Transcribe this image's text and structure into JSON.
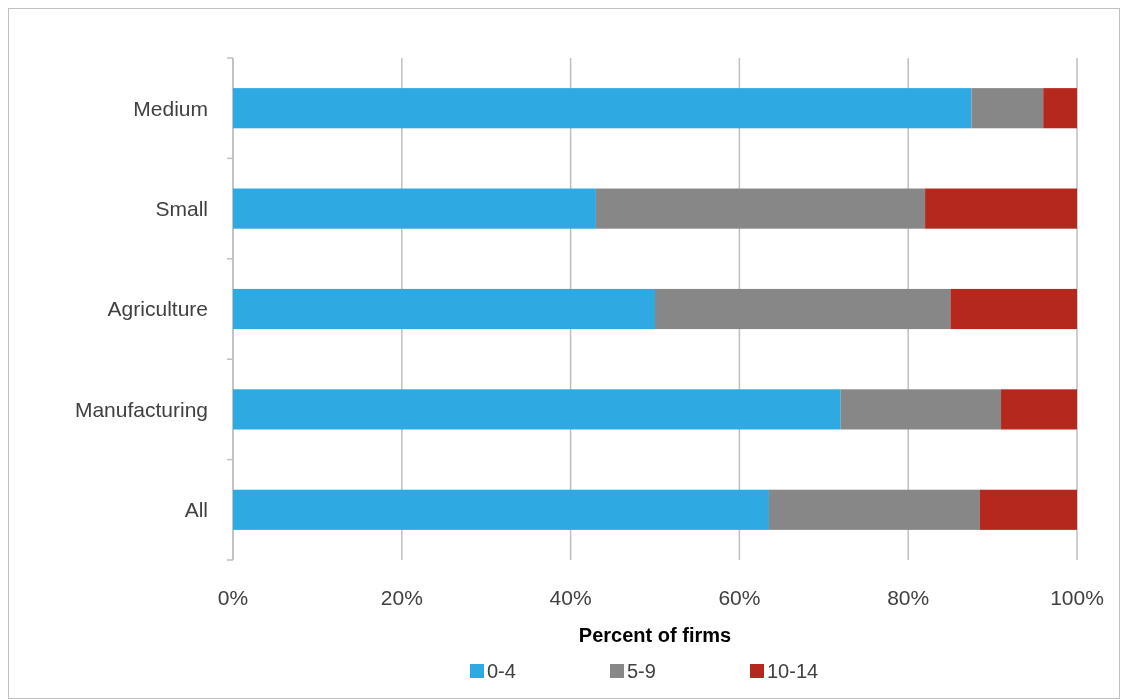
{
  "chart_data": {
    "type": "bar",
    "orientation": "horizontal",
    "stacked": true,
    "xlabel": "Percent of firms",
    "categories": [
      "Medium",
      "Small",
      "Agriculture",
      "Manufacturing",
      "All"
    ],
    "series": [
      {
        "name": "0-4",
        "color": "#2ea9e1",
        "values": [
          87.5,
          43,
          50,
          72,
          63.5
        ]
      },
      {
        "name": "5-9",
        "color": "#878787",
        "values": [
          8.5,
          39,
          35,
          19,
          25
        ]
      },
      {
        "name": "10-14",
        "color": "#b5281e",
        "values": [
          4,
          18,
          15,
          9,
          11.5
        ]
      }
    ],
    "xlim": [
      0,
      100
    ],
    "xticks": [
      {
        "value": 0,
        "label": "0%"
      },
      {
        "value": 20,
        "label": "20%"
      },
      {
        "value": 40,
        "label": "40%"
      },
      {
        "value": 60,
        "label": "60%"
      },
      {
        "value": 80,
        "label": "80%"
      },
      {
        "value": 100,
        "label": "100%"
      }
    ],
    "grid": "x",
    "legend": "bottom"
  }
}
